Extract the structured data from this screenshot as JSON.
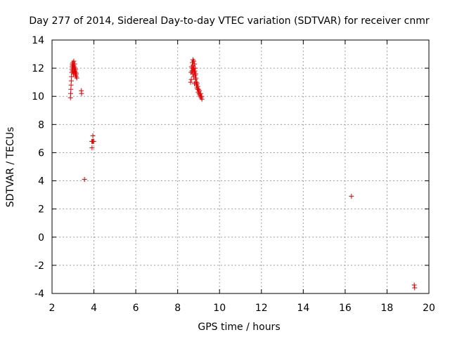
{
  "chart_data": {
    "type": "scatter",
    "title": "Day 277 of 2014, Sidereal Day-to-day VTEC variation (SDTVAR) for receiver cnmr",
    "xlabel": "GPS time / hours",
    "ylabel": "SDTVAR / TECUs",
    "xlim": [
      2,
      20
    ],
    "ylim": [
      -4,
      14
    ],
    "xticks": [
      "2",
      "4",
      "6",
      "8",
      "10",
      "12",
      "14",
      "16",
      "18",
      "20"
    ],
    "yticks": [
      "-4",
      "-2",
      "0",
      "2",
      "4",
      "6",
      "8",
      "10",
      "12",
      "14"
    ],
    "grid": true,
    "marker": "+",
    "color": "#e00000",
    "series": [
      {
        "name": "SDTVAR",
        "points": [
          [
            2.88,
            9.9
          ],
          [
            2.89,
            10.2
          ],
          [
            2.9,
            10.5
          ],
          [
            2.91,
            10.8
          ],
          [
            2.92,
            11.1
          ],
          [
            2.93,
            11.4
          ],
          [
            2.94,
            11.7
          ],
          [
            2.95,
            11.9
          ],
          [
            2.96,
            12.1
          ],
          [
            2.97,
            12.3
          ],
          [
            2.98,
            12.2
          ],
          [
            2.99,
            11.8
          ],
          [
            3.0,
            12.4
          ],
          [
            3.01,
            12.0
          ],
          [
            3.02,
            11.6
          ],
          [
            3.03,
            12.2
          ],
          [
            3.04,
            12.5
          ],
          [
            3.05,
            11.9
          ],
          [
            3.06,
            12.1
          ],
          [
            3.07,
            11.7
          ],
          [
            3.08,
            12.3
          ],
          [
            3.09,
            11.8
          ],
          [
            3.1,
            12.0
          ],
          [
            3.11,
            11.6
          ],
          [
            3.12,
            11.9
          ],
          [
            3.13,
            11.5
          ],
          [
            3.14,
            11.7
          ],
          [
            3.15,
            11.4
          ],
          [
            3.16,
            11.6
          ],
          [
            3.18,
            11.3
          ],
          [
            3.4,
            10.4
          ],
          [
            3.41,
            10.2
          ],
          [
            3.55,
            4.1
          ],
          [
            3.9,
            6.8
          ],
          [
            3.91,
            6.35
          ],
          [
            3.93,
            6.8
          ],
          [
            3.95,
            7.2
          ],
          [
            3.97,
            6.8
          ],
          [
            3.99,
            6.8
          ],
          [
            8.62,
            11.0
          ],
          [
            8.64,
            11.7
          ],
          [
            8.65,
            11.2
          ],
          [
            8.66,
            12.1
          ],
          [
            8.68,
            11.8
          ],
          [
            8.7,
            12.4
          ],
          [
            8.71,
            12.0
          ],
          [
            8.72,
            11.6
          ],
          [
            8.73,
            12.6
          ],
          [
            8.74,
            12.2
          ],
          [
            8.75,
            11.9
          ],
          [
            8.76,
            11.4
          ],
          [
            8.77,
            12.5
          ],
          [
            8.78,
            12.0
          ],
          [
            8.79,
            11.7
          ],
          [
            8.8,
            10.9
          ],
          [
            8.81,
            12.3
          ],
          [
            8.82,
            11.8
          ],
          [
            8.83,
            11.5
          ],
          [
            8.84,
            12.0
          ],
          [
            8.85,
            11.2
          ],
          [
            8.86,
            11.6
          ],
          [
            8.87,
            11.0
          ],
          [
            8.88,
            11.3
          ],
          [
            8.9,
            10.8
          ],
          [
            8.91,
            11.0
          ],
          [
            8.92,
            10.6
          ],
          [
            8.93,
            10.9
          ],
          [
            8.95,
            10.5
          ],
          [
            8.96,
            10.7
          ],
          [
            8.98,
            10.3
          ],
          [
            9.0,
            10.5
          ],
          [
            9.02,
            10.2
          ],
          [
            9.04,
            10.4
          ],
          [
            9.06,
            10.1
          ],
          [
            9.08,
            10.0
          ],
          [
            9.1,
            10.2
          ],
          [
            9.12,
            9.9
          ],
          [
            9.14,
            10.0
          ],
          [
            9.16,
            9.8
          ],
          [
            16.3,
            2.9
          ],
          [
            19.3,
            -3.4
          ],
          [
            19.32,
            -3.6
          ]
        ]
      }
    ]
  }
}
